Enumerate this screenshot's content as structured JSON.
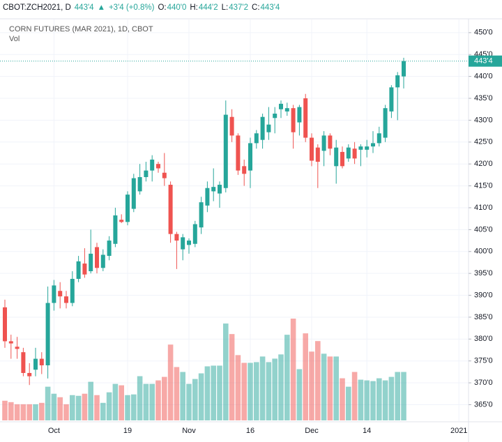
{
  "header": {
    "symbol": "CBOT:ZCH2021, D",
    "last": "443'4",
    "change": "+3'4 (+0.8%)",
    "ohlc": [
      {
        "label": "O:",
        "value": "440'0"
      },
      {
        "label": "H:",
        "value": "444'2"
      },
      {
        "label": "L:",
        "value": "437'2"
      },
      {
        "label": "C:",
        "value": "443'4"
      }
    ]
  },
  "chart_data": {
    "type": "candlestick",
    "title": "CORN FUTURES (MAR 2021), 1D, CBOT",
    "volume_label": "Vol",
    "last_label": "443'4",
    "up_color": "#26a69a",
    "down_color": "#ef5350",
    "grid": true,
    "categories": [
      null,
      null,
      null,
      null,
      null,
      null,
      null,
      null,
      "Oct",
      null,
      null,
      null,
      null,
      null,
      null,
      null,
      null,
      null,
      null,
      null,
      "19",
      null,
      null,
      null,
      null,
      null,
      null,
      null,
      null,
      null,
      "Nov",
      null,
      null,
      null,
      null,
      null,
      null,
      null,
      null,
      null,
      "16",
      null,
      null,
      null,
      null,
      null,
      null,
      null,
      null,
      null,
      "Dec",
      null,
      null,
      null,
      null,
      null,
      null,
      null,
      null,
      "14",
      null,
      null,
      null,
      null,
      null,
      null,
      null,
      null,
      null,
      null,
      null,
      null,
      null,
      null,
      "2021"
    ],
    "open": [
      387.25,
      379.5,
      378.25,
      377,
      372.25,
      373,
      375.5,
      374,
      388.25,
      391,
      389.75,
      388.25,
      393.75,
      397.25,
      395.5,
      401,
      396.25,
      399,
      401.75,
      407.25,
      406.75,
      409.75,
      413.75,
      417,
      418.5,
      420,
      418,
      415.25,
      404,
      400.5,
      401.5,
      401.75,
      405.5,
      410.5,
      413.75,
      413.25,
      414.5,
      430.75,
      426.5,
      419.5,
      418.5,
      424.75,
      425.5,
      427.25,
      430.5,
      432.5,
      432,
      432.75,
      429.5,
      435,
      426,
      423.75,
      423,
      426.5,
      419.5,
      422.75,
      421.25,
      423.5,
      423.25,
      423.25,
      424,
      424.75,
      426,
      432,
      437.5,
      440,
      null,
      null,
      null,
      null,
      null,
      null,
      null,
      null,
      null
    ],
    "high": [
      389,
      381,
      380.5,
      378,
      374.5,
      378,
      377,
      392,
      393.5,
      393,
      391,
      395.5,
      399,
      400.75,
      405,
      402,
      400.5,
      403.5,
      410,
      408.5,
      413.75,
      417.75,
      420,
      420.5,
      422,
      420.5,
      422.5,
      416,
      404.5,
      404,
      403,
      407,
      412.5,
      416,
      419,
      416,
      434.5,
      432.5,
      427,
      421,
      426,
      427.75,
      431.5,
      433,
      433,
      434.5,
      434,
      433.5,
      433.5,
      436,
      427,
      424.5,
      427.5,
      427,
      425.5,
      424,
      424.5,
      425,
      424.5,
      425.5,
      427.5,
      428.5,
      433.5,
      438,
      441,
      444.25,
      null,
      null,
      null,
      null,
      null,
      null,
      null,
      null,
      null
    ],
    "low": [
      378,
      375.5,
      375.5,
      371.5,
      369.5,
      371.5,
      372,
      371,
      386.5,
      387,
      387,
      387.5,
      393,
      394,
      395,
      395,
      395.5,
      398,
      401,
      406.5,
      406,
      409,
      413,
      416,
      416,
      418,
      415,
      402,
      396,
      398,
      399.5,
      401,
      404,
      409,
      411.5,
      410,
      413.5,
      425,
      417.5,
      415,
      414.5,
      423.5,
      423.5,
      425.5,
      427,
      430.5,
      431,
      423.5,
      426.5,
      425,
      419.5,
      414.5,
      419.5,
      422,
      415.5,
      419,
      420.5,
      420,
      419.5,
      421.5,
      422.5,
      424,
      425,
      430.5,
      430,
      437.25,
      null,
      null,
      null,
      null,
      null,
      null,
      null,
      null,
      null
    ],
    "close": [
      379.5,
      379,
      377.75,
      372.25,
      371.5,
      375.5,
      374,
      388.25,
      392.25,
      389.75,
      388.25,
      393.75,
      397.75,
      394.75,
      399.5,
      396.25,
      399.25,
      402.5,
      408.25,
      406.75,
      413,
      416.75,
      417,
      418.5,
      421,
      419,
      416.75,
      404,
      402.5,
      403.25,
      402.5,
      406.25,
      411.25,
      414.5,
      414.75,
      415.25,
      431.25,
      426.5,
      418.5,
      417.75,
      424.75,
      427,
      430.75,
      429,
      431.5,
      433.75,
      432.75,
      427.25,
      433,
      426,
      420.75,
      420.5,
      426.5,
      423.5,
      423.75,
      419.5,
      423.75,
      421.25,
      424,
      424,
      424.75,
      427,
      432.75,
      437.5,
      440.25,
      443.5,
      null,
      null,
      null,
      null,
      null,
      null,
      null,
      null,
      null
    ],
    "volume": [
      28,
      26,
      23,
      23,
      23,
      23,
      25,
      48,
      38,
      33,
      23,
      36,
      35,
      38,
      55,
      36,
      25,
      40,
      52,
      50,
      36,
      37,
      63,
      52,
      52,
      57,
      62,
      108,
      76,
      69,
      52,
      59,
      67,
      77,
      78,
      78,
      138,
      123,
      93,
      82,
      82,
      83,
      91,
      83,
      88,
      94,
      122,
      145,
      73,
      124,
      98,
      113,
      95,
      91,
      91,
      60,
      48,
      69,
      58,
      57,
      56,
      60,
      57,
      62,
      69,
      69,
      null,
      null,
      null,
      null,
      null,
      null,
      null,
      null,
      null
    ],
    "ylim": [
      361.1,
      453.0
    ],
    "yticks": [
      {
        "value": 365,
        "label": "365'0"
      },
      {
        "value": 370,
        "label": "370'0"
      },
      {
        "value": 375,
        "label": "375'0"
      },
      {
        "value": 380,
        "label": "380'0"
      },
      {
        "value": 385,
        "label": "385'0"
      },
      {
        "value": 390,
        "label": "390'0"
      },
      {
        "value": 395,
        "label": "395'0"
      },
      {
        "value": 400,
        "label": "400'0"
      },
      {
        "value": 405,
        "label": "405'0"
      },
      {
        "value": 410,
        "label": "410'0"
      },
      {
        "value": 415,
        "label": "415'0"
      },
      {
        "value": 420,
        "label": "420'0"
      },
      {
        "value": 425,
        "label": "425'0"
      },
      {
        "value": 430,
        "label": "430'0"
      },
      {
        "value": 435,
        "label": "435'0"
      },
      {
        "value": 440,
        "label": "440'0"
      },
      {
        "value": 445,
        "label": "445'0"
      },
      {
        "value": 450,
        "label": "450'0"
      }
    ]
  }
}
